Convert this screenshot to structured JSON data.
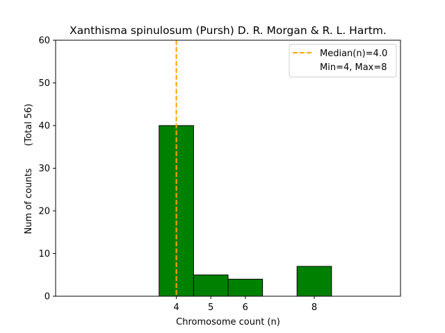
{
  "chart_data": {
    "type": "bar",
    "title": "Xanthisma spinulosum (Pursh) D. R. Morgan & R. L. Hartm.",
    "xlabel": "Chromosome count (n)",
    "ylabel": "Num of counts",
    "ylabel_total": "(Total 56)",
    "xlim": [
      0.5,
      10.5
    ],
    "ylim": [
      0,
      60
    ],
    "x_ticks": [
      4,
      5,
      6,
      8
    ],
    "y_ticks": [
      0,
      10,
      20,
      30,
      40,
      50,
      60
    ],
    "bars": [
      {
        "x": 4,
        "value": 40
      },
      {
        "x": 5,
        "value": 5
      },
      {
        "x": 6,
        "value": 4
      },
      {
        "x": 8,
        "value": 7
      }
    ],
    "bar_color": "#008000",
    "bar_edge_color": "#000000",
    "median": {
      "x": 4.0,
      "label": "Median(n)=4.0",
      "color": "#FFA500"
    },
    "minmax_label": "Min=4, Max=8",
    "legend_placement": "top-right",
    "grid": false
  }
}
